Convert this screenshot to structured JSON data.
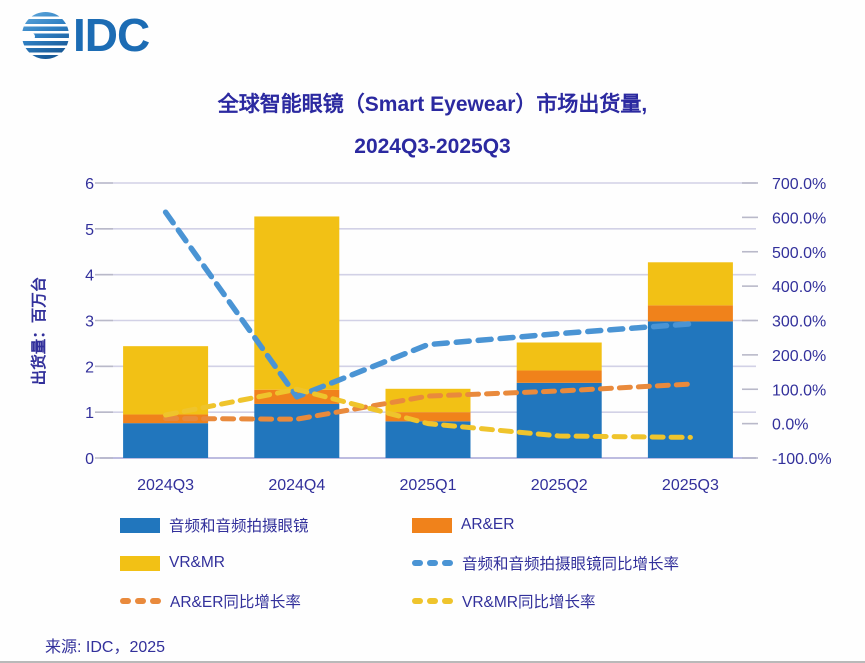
{
  "header": {
    "logo_text": "IDC",
    "title_line1": "全球智能眼镜（Smart Eyewear）市场出货量,",
    "title_line2": "2024Q3-2025Q3"
  },
  "chart_data": {
    "type": "bar",
    "subtype": "stacked-bars-with-growth-lines",
    "categories": [
      "2024Q3",
      "2024Q4",
      "2025Q1",
      "2025Q2",
      "2025Q3"
    ],
    "bar_series": [
      {
        "name": "音频和音频拍摄眼镜",
        "color": "#2176BD",
        "axis": "left",
        "values": [
          0.76,
          1.18,
          0.8,
          1.64,
          2.98
        ]
      },
      {
        "name": "AR&ER",
        "color": "#F0821B",
        "axis": "left",
        "values": [
          0.19,
          0.31,
          0.2,
          0.27,
          0.35
        ]
      },
      {
        "name": "VR&MR",
        "color": "#F2C115",
        "axis": "left",
        "values": [
          1.49,
          3.78,
          0.51,
          0.61,
          0.94
        ]
      }
    ],
    "bar_totals": [
      2.44,
      5.27,
      1.51,
      2.52,
      4.27
    ],
    "line_series": [
      {
        "name": "音频和音频拍摄眼镜同比增长率",
        "color": "#4A94D4",
        "axis": "right",
        "values_pct": [
          615,
          78,
          230,
          262,
          290
        ]
      },
      {
        "name": "AR&ER同比增长率",
        "color": "#E98A3C",
        "axis": "right",
        "values_pct": [
          15,
          13,
          80,
          95,
          115
        ]
      },
      {
        "name": "VR&MR同比增长率",
        "color": "#EFC42C",
        "axis": "right",
        "values_pct": [
          25,
          100,
          0,
          -36,
          -40
        ]
      }
    ],
    "left_axis": {
      "label": "出货量：百万台",
      "ticks": [
        "0",
        "1",
        "2",
        "3",
        "4",
        "5",
        "6"
      ],
      "range": [
        0,
        6
      ]
    },
    "right_axis": {
      "ticks": [
        "-100.0%",
        "0.0%",
        "100.0%",
        "200.0%",
        "300.0%",
        "400.0%",
        "500.0%",
        "600.0%",
        "700.0%"
      ],
      "range": [
        -100,
        700
      ]
    },
    "grid": "horizontal",
    "legend_position": "bottom"
  },
  "legend": {
    "items": [
      {
        "label": "音频和音频拍摄眼镜",
        "swatch": "solid",
        "color": "#2176BD"
      },
      {
        "label": "AR&ER",
        "swatch": "solid",
        "color": "#F0821B"
      },
      {
        "label": "VR&MR",
        "swatch": "solid",
        "color": "#F2C115"
      },
      {
        "label": "音频和音频拍摄眼镜同比增长率",
        "swatch": "dashed",
        "color": "#4A94D4"
      },
      {
        "label": "AR&ER同比增长率",
        "swatch": "dashed",
        "color": "#E98A3C"
      },
      {
        "label": "VR&MR同比增长率",
        "swatch": "dashed",
        "color": "#EFC42C"
      }
    ]
  },
  "source": {
    "text": "来源: IDC，2025"
  },
  "colors": {
    "text_navy": "#32309B",
    "title_navy": "#2B29A0",
    "logo_blue": "#1C6CB4",
    "grid_line": "#D2D1E6",
    "baseline": "#BDBCE0",
    "tick_mark": "#B9B9C9"
  }
}
